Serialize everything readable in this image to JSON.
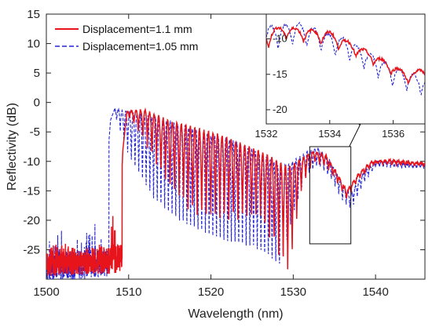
{
  "chart_data": {
    "type": "line",
    "xlabel": "Wavelength (nm)",
    "ylabel": "Reflectivity (dB)",
    "xlim": [
      1500,
      1546
    ],
    "ylim": [
      -30,
      15
    ],
    "x_ticks": [
      1500,
      1510,
      1520,
      1530,
      1540
    ],
    "y_ticks": [
      15,
      10,
      5,
      0,
      -5,
      -10,
      -15,
      -20,
      -25
    ],
    "grid": false,
    "legend_position": "top-left",
    "series": [
      {
        "name": "Displacement=1.1 mm",
        "color": "#e8141c",
        "line_style": "solid",
        "fringe_period_nm": 0.55,
        "envelope": [
          [
            1500,
            -30
          ],
          [
            1507.5,
            -30
          ],
          [
            1508.6,
            -30
          ],
          [
            1509.3,
            -8
          ],
          [
            1509.8,
            -1.5
          ],
          [
            1512,
            -1.3
          ],
          [
            1515,
            -3.2
          ],
          [
            1518,
            -4.3
          ],
          [
            1521,
            -5.5
          ],
          [
            1524,
            -7.2
          ],
          [
            1526,
            -8.4
          ],
          [
            1528,
            -9.8
          ],
          [
            1529.5,
            -11
          ],
          [
            1531,
            -9.5
          ],
          [
            1532.5,
            -8.3
          ],
          [
            1534,
            -9
          ],
          [
            1535.5,
            -12.5
          ],
          [
            1536.5,
            -15
          ],
          [
            1538,
            -12
          ],
          [
            1539.5,
            -10
          ],
          [
            1542,
            -9.8
          ],
          [
            1544,
            -10.1
          ],
          [
            1546,
            -10.3
          ]
        ],
        "fringe_floor": [
          [
            1509.8,
            -2
          ],
          [
            1512,
            -7
          ],
          [
            1515,
            -15
          ],
          [
            1518,
            -19.5
          ],
          [
            1521,
            -20.5
          ],
          [
            1524,
            -20
          ],
          [
            1526,
            -20
          ],
          [
            1528,
            -25.5
          ],
          [
            1529.5,
            -30
          ],
          [
            1531,
            -15
          ],
          [
            1532.5,
            -10
          ],
          [
            1534,
            -11
          ],
          [
            1535.5,
            -14
          ],
          [
            1536.5,
            -16.5
          ],
          [
            1538,
            -13
          ],
          [
            1540,
            -10.5
          ],
          [
            1546,
            -10.8
          ]
        ]
      },
      {
        "name": "Displacement=1.05 mm",
        "color": "#2323d8",
        "line_style": "dashed",
        "fringe_period_nm": 0.45,
        "envelope": [
          [
            1500,
            -30
          ],
          [
            1505.5,
            -30
          ],
          [
            1506.6,
            -30
          ],
          [
            1507.2,
            -14
          ],
          [
            1507.8,
            -3
          ],
          [
            1508.3,
            -1.1
          ],
          [
            1510,
            -1.6
          ],
          [
            1513,
            -2.5
          ],
          [
            1516,
            -3.6
          ],
          [
            1519,
            -5.2
          ],
          [
            1522,
            -6.2
          ],
          [
            1525,
            -8
          ],
          [
            1527,
            -9.5
          ],
          [
            1528.5,
            -11
          ],
          [
            1530,
            -10
          ],
          [
            1531.5,
            -8.5
          ],
          [
            1533,
            -7.8
          ],
          [
            1534.5,
            -10
          ],
          [
            1536,
            -14
          ],
          [
            1537,
            -15.5
          ],
          [
            1538.5,
            -12
          ],
          [
            1540,
            -10
          ],
          [
            1542,
            -10
          ],
          [
            1544,
            -10.5
          ],
          [
            1546,
            -10.5
          ]
        ],
        "fringe_floor": [
          [
            1508.3,
            -2
          ],
          [
            1510,
            -10
          ],
          [
            1513,
            -18
          ],
          [
            1516,
            -22
          ],
          [
            1519,
            -24
          ],
          [
            1522,
            -26
          ],
          [
            1525,
            -26.5
          ],
          [
            1527,
            -28
          ],
          [
            1528.5,
            -30
          ],
          [
            1530,
            -20
          ],
          [
            1531.5,
            -13
          ],
          [
            1533,
            -11
          ],
          [
            1534.5,
            -13
          ],
          [
            1536,
            -17
          ],
          [
            1537,
            -18.5
          ],
          [
            1538.5,
            -14
          ],
          [
            1540,
            -11
          ],
          [
            1546,
            -11.2
          ]
        ]
      }
    ],
    "annotations": [
      {
        "type": "zoom-box",
        "x_range": [
          1532,
          1537
        ],
        "y_range": [
          -24,
          -7.5
        ]
      }
    ],
    "inset": {
      "xlim": [
        1532,
        1537
      ],
      "ylim": [
        -22,
        -6.5
      ],
      "x_ticks": [
        1532,
        1534,
        1536
      ],
      "y_ticks": [
        -10,
        -15,
        -20
      ]
    }
  }
}
